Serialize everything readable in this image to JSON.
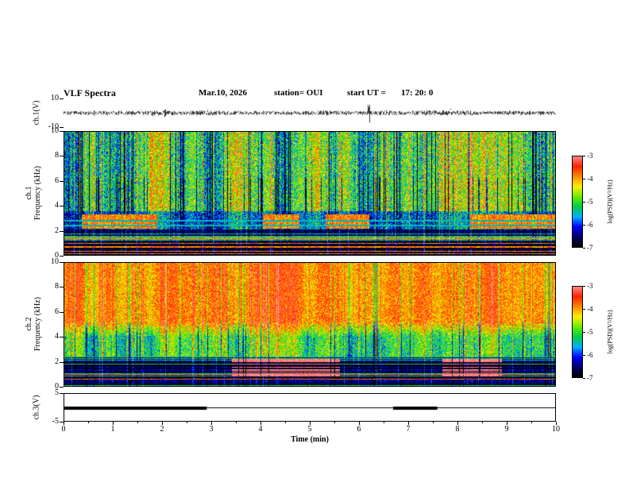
{
  "header": {
    "title": "VLF Spectra",
    "date": "Mar.10, 2026",
    "station": "station= OUI",
    "start_ut_label": "start UT =",
    "start_ut_value": "17: 20: 0"
  },
  "time_axis": {
    "label": "Time (min)",
    "min": 0,
    "max": 10,
    "ticks": [
      0,
      1,
      2,
      3,
      4,
      5,
      6,
      7,
      8,
      9,
      10
    ]
  },
  "colorbar": {
    "label": "log(PSD)(V²/Hz)",
    "range": [
      -7,
      -3
    ],
    "ticks": [
      -3,
      -4,
      -5,
      -6,
      -7
    ],
    "colors_bottom_to_top": [
      "#000000",
      "#000066",
      "#0000ff",
      "#00b0ff",
      "#00cc44",
      "#66ee00",
      "#ffee00",
      "#ff8800",
      "#ff2200",
      "#ff8888"
    ]
  },
  "chart_data": [
    {
      "id": "ch1_waveform",
      "type": "line",
      "ylabel": "ch.1(V)",
      "ylim": [
        -10,
        10
      ],
      "yticks": [
        10,
        -10
      ],
      "noise_amplitude_v": 1.6,
      "spikes": [
        {
          "t_min": 6.2,
          "amplitude_v": 9
        }
      ],
      "x_range_min": [
        0,
        10
      ]
    },
    {
      "id": "ch1_spectrogram",
      "type": "heatmap",
      "ylabel_line1": "ch.1",
      "ylabel_line2": "Frequency (kHz)",
      "ylim": [
        0,
        10
      ],
      "yticks": [
        0,
        2,
        4,
        6,
        8,
        10
      ],
      "value_range_log_psd": [
        -7,
        -3
      ],
      "background_level_above_4khz": -5.1,
      "red_band_khz": [
        2.15,
        3.3
      ],
      "dark_band_khz": [
        0,
        2.1
      ],
      "x_range_min": [
        0,
        10
      ]
    },
    {
      "id": "ch2_spectrogram",
      "type": "heatmap",
      "ylabel_line1": "ch.2",
      "ylabel_line2": "Frequency (kHz)",
      "ylim": [
        0,
        10
      ],
      "yticks": [
        0,
        2,
        4,
        6,
        8,
        10
      ],
      "value_range_log_psd": [
        -7,
        -3
      ],
      "hot_level_above_5khz": -3.9,
      "mid_level": -5.1,
      "dark_band_khz": [
        0,
        2.4
      ],
      "white_patches": {
        "t_windows_min": [
          [
            3.4,
            5.6
          ],
          [
            7.7,
            8.9
          ]
        ],
        "f_range_khz": [
          0.8,
          2.2
        ]
      },
      "x_range_min": [
        0,
        10
      ]
    },
    {
      "id": "ch3_level",
      "type": "line",
      "ylabel": "ch.3(V)",
      "ylim": [
        -5,
        5
      ],
      "yticks": [
        5,
        -5
      ],
      "baseline_v": 0,
      "high_segments_min": [
        [
          0,
          2.9
        ],
        [
          6.7,
          7.6
        ]
      ],
      "x_range_min": [
        0,
        10
      ]
    }
  ]
}
